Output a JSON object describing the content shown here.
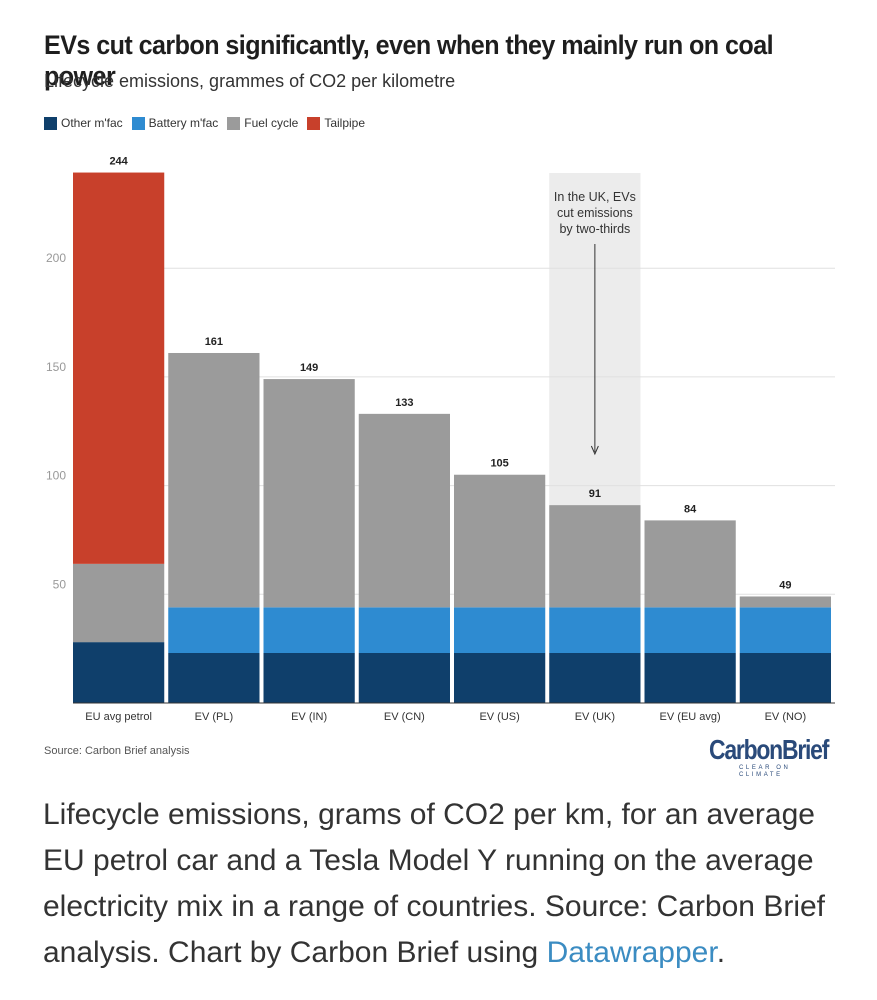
{
  "title": "EVs cut carbon significantly, even when they mainly run on coal power",
  "subtitle": "Lifecycle emissions, grammes of CO2 per kilometre",
  "legend": [
    {
      "label": "Other m'fac",
      "color": "#0f3f6b"
    },
    {
      "label": "Battery m'fac",
      "color": "#2e8bd1"
    },
    {
      "label": "Fuel cycle",
      "color": "#9b9b9b"
    },
    {
      "label": "Tailpipe",
      "color": "#c8402b"
    }
  ],
  "chart_data": {
    "type": "bar",
    "stacked": true,
    "title": "EVs cut carbon significantly, even when they mainly run on coal power",
    "ylabel": "Lifecycle emissions, grammes of CO2 per kilometre",
    "ylim": [
      0,
      245
    ],
    "yticks": [
      50,
      100,
      150,
      200
    ],
    "grid": true,
    "categories": [
      "EU avg petrol",
      "EV (PL)",
      "EV (IN)",
      "EV (CN)",
      "EV (US)",
      "EV (UK)",
      "EV (EU avg)",
      "EV (NO)"
    ],
    "totals": [
      244,
      161,
      149,
      133,
      105,
      91,
      84,
      49
    ],
    "series": [
      {
        "name": "Other m'fac",
        "color": "#0f3f6b",
        "values": [
          28,
          23,
          23,
          23,
          23,
          23,
          23,
          23
        ]
      },
      {
        "name": "Battery m'fac",
        "color": "#2e8bd1",
        "values": [
          0,
          21,
          21,
          21,
          21,
          21,
          21,
          21
        ]
      },
      {
        "name": "Fuel cycle",
        "color": "#9b9b9b",
        "values": [
          36,
          117,
          105,
          89,
          61,
          47,
          40,
          5
        ]
      },
      {
        "name": "Tailpipe",
        "color": "#c8402b",
        "values": [
          180,
          0,
          0,
          0,
          0,
          0,
          0,
          0
        ]
      }
    ],
    "highlight": {
      "category": "EV (UK)",
      "lines": [
        "In the UK, EVs",
        "cut emissions",
        "by two-thirds"
      ]
    }
  },
  "source": "Source: Carbon Brief analysis",
  "logo": {
    "name": "CarbonBrief",
    "tagline": "CLEAR ON CLIMATE"
  },
  "caption": {
    "text": "Lifecycle emissions, grams of CO2 per km, for an average EU petrol car and a Tesla Model Y running on the average electricity mix in a range of countries. Source: Carbon Brief analysis. Chart by Carbon Brief using ",
    "link_text": "Datawrapper",
    "end": "."
  }
}
